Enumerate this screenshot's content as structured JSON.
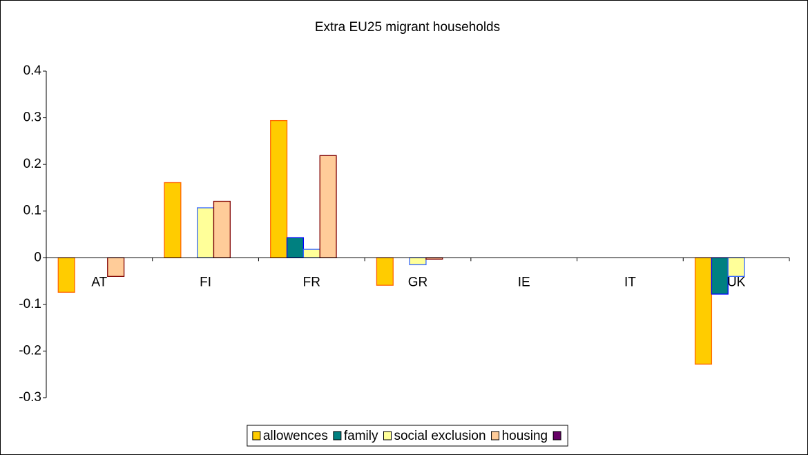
{
  "chart_data": {
    "type": "bar",
    "title": "Extra EU25 migrant households",
    "categories": [
      "AT",
      "FI",
      "FR",
      "GR",
      "IE",
      "IT",
      "UK"
    ],
    "series": [
      {
        "name": "allowences",
        "color": "#FFCC00",
        "border": "#FF6600",
        "values": [
          -0.074,
          0.161,
          0.294,
          -0.059,
          null,
          null,
          -0.228
        ]
      },
      {
        "name": "family",
        "color": "#008080",
        "border": "#0000FF",
        "values": [
          null,
          null,
          0.043,
          null,
          null,
          null,
          -0.078
        ]
      },
      {
        "name": "social exclusion",
        "color": "#FFFF99",
        "border": "#3366FF",
        "values": [
          null,
          0.107,
          0.018,
          -0.015,
          null,
          null,
          -0.04
        ]
      },
      {
        "name": "housing",
        "color": "#FFCC99",
        "border": "#800000",
        "values": [
          -0.04,
          0.121,
          0.219,
          -0.003,
          null,
          null,
          null
        ]
      },
      {
        "color": "#660066",
        "border": "#000000",
        "values": [
          null,
          null,
          null,
          null,
          null,
          null,
          null
        ]
      }
    ],
    "ylim": [
      -0.3,
      0.4
    ],
    "yticks": [
      -0.3,
      -0.2,
      -0.1,
      0,
      0.1,
      0.2,
      0.3,
      0.4
    ],
    "grid": false
  }
}
